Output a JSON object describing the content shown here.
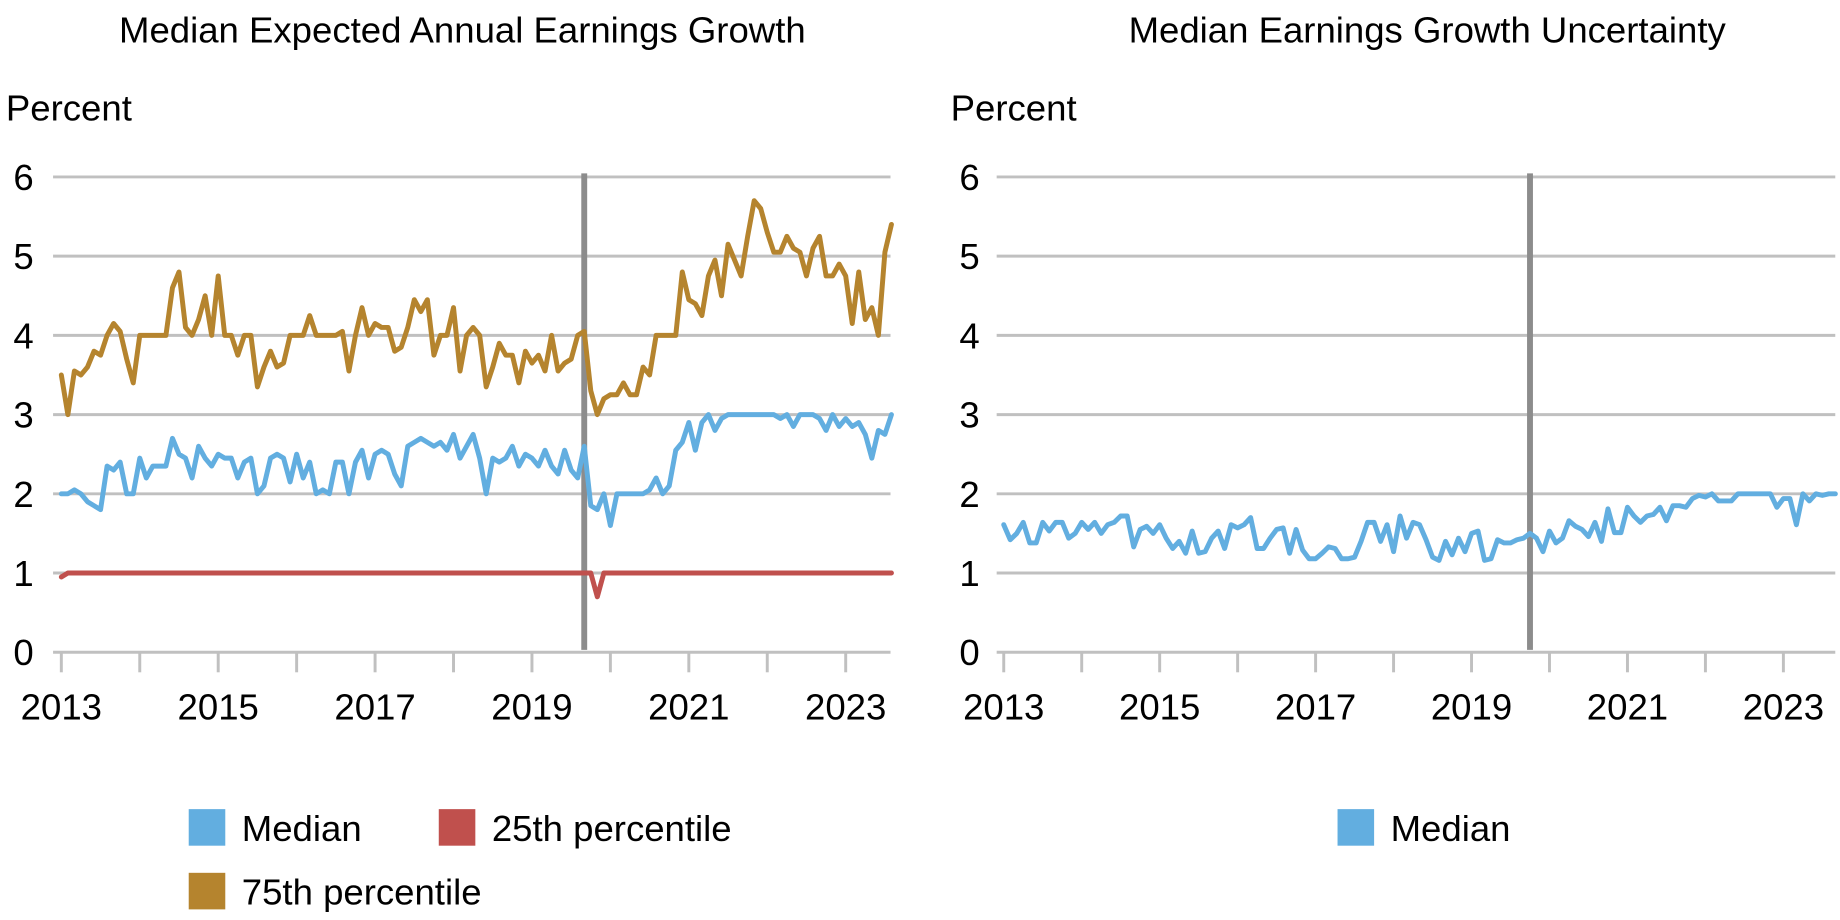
{
  "chart_data": [
    {
      "type": "line",
      "title": "Median Expected Annual Earnings Growth",
      "ylabel": "Percent",
      "ylim": [
        0,
        6
      ],
      "yticks": [
        0,
        1,
        2,
        3,
        4,
        5,
        6
      ],
      "xticks": [
        "2013",
        "2015",
        "2017",
        "2019",
        "2021",
        "2023"
      ],
      "xlim": [
        "2013-01",
        "2023-08"
      ],
      "grid": true,
      "legend_position": "bottom",
      "vertical_line": "2019-09",
      "dates": [
        "2013-01",
        "2013-02",
        "2013-03",
        "2013-04",
        "2013-05",
        "2013-06",
        "2013-07",
        "2013-08",
        "2013-09",
        "2013-10",
        "2013-11",
        "2013-12",
        "2014-01",
        "2014-02",
        "2014-03",
        "2014-04",
        "2014-05",
        "2014-06",
        "2014-07",
        "2014-08",
        "2014-09",
        "2014-10",
        "2014-11",
        "2014-12",
        "2015-01",
        "2015-02",
        "2015-03",
        "2015-04",
        "2015-05",
        "2015-06",
        "2015-07",
        "2015-08",
        "2015-09",
        "2015-10",
        "2015-11",
        "2015-12",
        "2016-01",
        "2016-02",
        "2016-03",
        "2016-04",
        "2016-05",
        "2016-06",
        "2016-07",
        "2016-08",
        "2016-09",
        "2016-10",
        "2016-11",
        "2016-12",
        "2017-01",
        "2017-02",
        "2017-03",
        "2017-04",
        "2017-05",
        "2017-06",
        "2017-07",
        "2017-08",
        "2017-09",
        "2017-10",
        "2017-11",
        "2017-12",
        "2018-01",
        "2018-02",
        "2018-03",
        "2018-04",
        "2018-05",
        "2018-06",
        "2018-07",
        "2018-08",
        "2018-09",
        "2018-10",
        "2018-11",
        "2018-12",
        "2019-01",
        "2019-02",
        "2019-03",
        "2019-04",
        "2019-05",
        "2019-06",
        "2019-07",
        "2019-08",
        "2019-09",
        "2019-10",
        "2019-11",
        "2019-12",
        "2020-01",
        "2020-02",
        "2020-03",
        "2020-04",
        "2020-05",
        "2020-06",
        "2020-07",
        "2020-08",
        "2020-09",
        "2020-10",
        "2020-11",
        "2020-12",
        "2021-01",
        "2021-02",
        "2021-03",
        "2021-04",
        "2021-05",
        "2021-06",
        "2021-07",
        "2021-08",
        "2021-09",
        "2021-10",
        "2021-11",
        "2021-12",
        "2022-01",
        "2022-02",
        "2022-03",
        "2022-04",
        "2022-05",
        "2022-06",
        "2022-07",
        "2022-08",
        "2022-09",
        "2022-10",
        "2022-11",
        "2022-12",
        "2023-01",
        "2023-02",
        "2023-03",
        "2023-04",
        "2023-05",
        "2023-06",
        "2023-07",
        "2023-08"
      ],
      "series": [
        {
          "name": "Median",
          "color": "#62AEE0",
          "values": [
            2.0,
            2.0,
            2.05,
            2.0,
            1.9,
            1.85,
            1.8,
            2.35,
            2.3,
            2.4,
            2.0,
            2.0,
            2.45,
            2.2,
            2.35,
            2.35,
            2.35,
            2.7,
            2.5,
            2.45,
            2.2,
            2.6,
            2.45,
            2.35,
            2.5,
            2.45,
            2.45,
            2.2,
            2.4,
            2.45,
            2.0,
            2.1,
            2.45,
            2.5,
            2.45,
            2.15,
            2.5,
            2.2,
            2.4,
            2.0,
            2.05,
            2.0,
            2.4,
            2.4,
            2.0,
            2.4,
            2.55,
            2.2,
            2.5,
            2.55,
            2.5,
            2.25,
            2.1,
            2.6,
            2.65,
            2.7,
            2.65,
            2.6,
            2.65,
            2.55,
            2.75,
            2.45,
            2.6,
            2.75,
            2.45,
            2.0,
            2.45,
            2.4,
            2.45,
            2.6,
            2.35,
            2.5,
            2.45,
            2.35,
            2.55,
            2.35,
            2.25,
            2.55,
            2.3,
            2.2,
            2.6,
            1.85,
            1.8,
            2.0,
            1.6,
            2.0,
            2.0,
            2.0,
            2.0,
            2.0,
            2.05,
            2.2,
            2.0,
            2.1,
            2.55,
            2.65,
            2.9,
            2.55,
            2.9,
            3.0,
            2.8,
            2.95,
            3.0,
            3.0,
            3.0,
            3.0,
            3.0,
            3.0,
            3.0,
            3.0,
            2.95,
            3.0,
            2.85,
            3.0,
            3.0,
            3.0,
            2.95,
            2.8,
            3.0,
            2.85,
            2.95,
            2.85,
            2.9,
            2.75,
            2.45,
            2.8,
            2.75,
            3.0
          ]
        },
        {
          "name": "25th percentile",
          "color": "#C0504D",
          "values": [
            0.95,
            1,
            1,
            1,
            1,
            1,
            1,
            1,
            1,
            1,
            1,
            1,
            1,
            1,
            1,
            1,
            1,
            1,
            1,
            1,
            1,
            1,
            1,
            1,
            1,
            1,
            1,
            1,
            1,
            1,
            1,
            1,
            1,
            1,
            1,
            1,
            1,
            1,
            1,
            1,
            1,
            1,
            1,
            1,
            1,
            1,
            1,
            1,
            1,
            1,
            1,
            1,
            1,
            1,
            1,
            1,
            1,
            1,
            1,
            1,
            1,
            1,
            1,
            1,
            1,
            1,
            1,
            1,
            1,
            1,
            1,
            1,
            1,
            1,
            1,
            1,
            1,
            1,
            1,
            1,
            1,
            1,
            0.7,
            1,
            1,
            1,
            1,
            1,
            1,
            1,
            1,
            1,
            1,
            1,
            1,
            1,
            1,
            1,
            1,
            1,
            1,
            1,
            1,
            1,
            1,
            1,
            1,
            1,
            1,
            1,
            1,
            1,
            1,
            1,
            1,
            1,
            1,
            1,
            1,
            1,
            1,
            1,
            1,
            1,
            1,
            1,
            1,
            1
          ]
        },
        {
          "name": "75th percentile",
          "color": "#B5842E",
          "values": [
            3.5,
            3.0,
            3.55,
            3.5,
            3.6,
            3.8,
            3.75,
            4.0,
            4.15,
            4.05,
            3.7,
            3.4,
            4.0,
            4.0,
            4.0,
            4.0,
            4.0,
            4.6,
            4.8,
            4.1,
            4.0,
            4.2,
            4.5,
            4.0,
            4.75,
            4.0,
            4.0,
            3.75,
            4.0,
            4.0,
            3.35,
            3.6,
            3.8,
            3.6,
            3.65,
            4.0,
            4.0,
            4.0,
            4.25,
            4.0,
            4.0,
            4.0,
            4.0,
            4.05,
            3.55,
            4.0,
            4.35,
            4.0,
            4.15,
            4.1,
            4.1,
            3.8,
            3.85,
            4.1,
            4.45,
            4.3,
            4.45,
            3.75,
            4.0,
            4.0,
            4.35,
            3.55,
            4.0,
            4.1,
            4.0,
            3.35,
            3.6,
            3.9,
            3.75,
            3.75,
            3.4,
            3.8,
            3.65,
            3.75,
            3.55,
            4.0,
            3.55,
            3.65,
            3.7,
            4.0,
            4.05,
            3.3,
            3.0,
            3.2,
            3.25,
            3.25,
            3.4,
            3.25,
            3.25,
            3.6,
            3.5,
            4.0,
            4.0,
            4.0,
            4.0,
            4.8,
            4.45,
            4.4,
            4.25,
            4.75,
            4.95,
            4.5,
            5.15,
            4.95,
            4.75,
            5.25,
            5.7,
            5.6,
            5.3,
            5.05,
            5.05,
            5.25,
            5.1,
            5.05,
            4.75,
            5.1,
            5.25,
            4.75,
            4.75,
            4.9,
            4.75,
            4.15,
            4.8,
            4.2,
            4.35,
            4.0,
            5.05,
            5.4
          ]
        }
      ]
    },
    {
      "type": "line",
      "title": "Median Earnings Growth Uncertainty",
      "ylabel": "Percent",
      "ylim": [
        0,
        6
      ],
      "yticks": [
        0,
        1,
        2,
        3,
        4,
        5,
        6
      ],
      "xticks": [
        "2013",
        "2015",
        "2017",
        "2019",
        "2021",
        "2023"
      ],
      "xlim": [
        "2013-01",
        "2023-09"
      ],
      "grid": true,
      "legend_position": "bottom",
      "vertical_line": "2019-10",
      "dates": [
        "2013-01",
        "2013-02",
        "2013-03",
        "2013-04",
        "2013-05",
        "2013-06",
        "2013-07",
        "2013-08",
        "2013-09",
        "2013-10",
        "2013-11",
        "2013-12",
        "2014-01",
        "2014-02",
        "2014-03",
        "2014-04",
        "2014-05",
        "2014-06",
        "2014-07",
        "2014-08",
        "2014-09",
        "2014-10",
        "2014-11",
        "2014-12",
        "2015-01",
        "2015-02",
        "2015-03",
        "2015-04",
        "2015-05",
        "2015-06",
        "2015-07",
        "2015-08",
        "2015-09",
        "2015-10",
        "2015-11",
        "2015-12",
        "2016-01",
        "2016-02",
        "2016-03",
        "2016-04",
        "2016-05",
        "2016-06",
        "2016-07",
        "2016-08",
        "2016-09",
        "2016-10",
        "2016-11",
        "2016-12",
        "2017-01",
        "2017-02",
        "2017-03",
        "2017-04",
        "2017-05",
        "2017-06",
        "2017-07",
        "2017-08",
        "2017-09",
        "2017-10",
        "2017-11",
        "2017-12",
        "2018-01",
        "2018-02",
        "2018-03",
        "2018-04",
        "2018-05",
        "2018-06",
        "2018-07",
        "2018-08",
        "2018-09",
        "2018-10",
        "2018-11",
        "2018-12",
        "2019-01",
        "2019-02",
        "2019-03",
        "2019-04",
        "2019-05",
        "2019-06",
        "2019-07",
        "2019-08",
        "2019-09",
        "2019-10",
        "2019-11",
        "2019-12",
        "2020-01",
        "2020-02",
        "2020-03",
        "2020-04",
        "2020-05",
        "2020-06",
        "2020-07",
        "2020-08",
        "2020-09",
        "2020-10",
        "2020-11",
        "2020-12",
        "2021-01",
        "2021-02",
        "2021-03",
        "2021-04",
        "2021-05",
        "2021-06",
        "2021-07",
        "2021-08",
        "2021-09",
        "2021-10",
        "2021-11",
        "2021-12",
        "2022-01",
        "2022-02",
        "2022-03",
        "2022-04",
        "2022-05",
        "2022-06",
        "2022-07",
        "2022-08",
        "2022-09",
        "2022-10",
        "2022-11",
        "2022-12",
        "2023-01",
        "2023-02",
        "2023-03",
        "2023-04",
        "2023-05",
        "2023-06",
        "2023-07",
        "2023-08",
        "2023-09"
      ],
      "series": [
        {
          "name": "Median",
          "color": "#62AEE0",
          "values": [
            1.61,
            1.42,
            1.5,
            1.64,
            1.38,
            1.38,
            1.64,
            1.53,
            1.64,
            1.64,
            1.44,
            1.5,
            1.64,
            1.55,
            1.64,
            1.5,
            1.61,
            1.64,
            1.72,
            1.72,
            1.33,
            1.55,
            1.59,
            1.5,
            1.61,
            1.44,
            1.31,
            1.4,
            1.25,
            1.53,
            1.25,
            1.27,
            1.44,
            1.53,
            1.31,
            1.61,
            1.57,
            1.61,
            1.7,
            1.31,
            1.31,
            1.44,
            1.55,
            1.57,
            1.25,
            1.55,
            1.29,
            1.18,
            1.18,
            1.25,
            1.33,
            1.31,
            1.18,
            1.18,
            1.2,
            1.4,
            1.64,
            1.64,
            1.4,
            1.61,
            1.27,
            1.72,
            1.44,
            1.64,
            1.61,
            1.42,
            1.2,
            1.16,
            1.4,
            1.23,
            1.44,
            1.27,
            1.5,
            1.53,
            1.16,
            1.18,
            1.42,
            1.38,
            1.38,
            1.42,
            1.44,
            1.5,
            1.44,
            1.27,
            1.53,
            1.38,
            1.44,
            1.66,
            1.59,
            1.55,
            1.46,
            1.64,
            1.4,
            1.81,
            1.51,
            1.51,
            1.83,
            1.72,
            1.64,
            1.72,
            1.74,
            1.83,
            1.66,
            1.85,
            1.85,
            1.83,
            1.94,
            1.98,
            1.96,
            2.0,
            1.91,
            1.91,
            1.91,
            2.0,
            2.0,
            2.0,
            2.0,
            2.0,
            2.0,
            1.83,
            1.94,
            1.94,
            1.61,
            2.0,
            1.91,
            2.0,
            1.98,
            2.0,
            2.0
          ]
        }
      ]
    }
  ]
}
